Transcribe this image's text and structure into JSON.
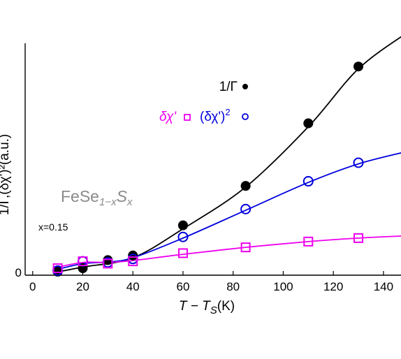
{
  "chart_data": {
    "type": "line",
    "x_tick_labels": [
      "0",
      "20",
      "40",
      "60",
      "80",
      "100",
      "120",
      "140"
    ],
    "y_tick_labels": [
      "0"
    ],
    "xlim": [
      -3,
      147
    ],
    "ylim": [
      0,
      1
    ],
    "xlabel": "T − T_S(K)",
    "xlabel_parts": {
      "main": "T − T",
      "sub": "S",
      "tail": "(K)"
    },
    "ylabel": "1/Γ,(δχ')²(a.u.)",
    "ylabel_visible": "1/Γ,(δχ')²(a.u.)",
    "annotations": {
      "material": {
        "base": "FeSe",
        "sub": "1−x",
        "s": "S",
        "s_sub": "x"
      },
      "composition": "x=0.15"
    },
    "legend": [
      {
        "label": "1/Γ",
        "marker": "filled-circle",
        "color": "#000000"
      },
      {
        "label": "δχ'",
        "marker": "open-square",
        "color": "#ee00ee"
      },
      {
        "label": "(δχ')",
        "sup": "2",
        "marker": "open-circle",
        "color": "#0000dd"
      }
    ],
    "series": [
      {
        "name": "1/Γ",
        "color": "#000000",
        "marker": "filled-circle",
        "x": [
          10,
          20,
          30,
          40,
          60,
          85,
          110,
          130
        ],
        "y": [
          0.015,
          0.03,
          0.065,
          0.085,
          0.215,
          0.385,
          0.655,
          0.9
        ],
        "fit_x": [
          8,
          20,
          40,
          60,
          85,
          110,
          130,
          150
        ],
        "fit_y": [
          0.01,
          0.035,
          0.075,
          0.2,
          0.38,
          0.64,
          0.89,
          1.05
        ]
      },
      {
        "name": "(δχ')²",
        "color": "#0000dd",
        "marker": "open-circle",
        "x": [
          10,
          20,
          30,
          40,
          60,
          85,
          110,
          130
        ],
        "y": [
          0.02,
          0.06,
          0.055,
          0.07,
          0.165,
          0.285,
          0.405,
          0.485
        ],
        "fit_x": [
          8,
          20,
          30,
          40,
          60,
          85,
          110,
          130,
          150
        ],
        "fit_y": [
          0.02,
          0.05,
          0.057,
          0.075,
          0.16,
          0.28,
          0.4,
          0.48,
          0.535
        ]
      },
      {
        "name": "δχ'",
        "color": "#ee00ee",
        "marker": "open-square",
        "x": [
          10,
          20,
          30,
          40,
          60,
          85,
          110,
          130
        ],
        "y": [
          0.03,
          0.06,
          0.05,
          0.06,
          0.095,
          0.12,
          0.145,
          0.16
        ],
        "fit_x": [
          8,
          20,
          30,
          40,
          60,
          85,
          110,
          130,
          150
        ],
        "fit_y": [
          0.03,
          0.055,
          0.055,
          0.063,
          0.09,
          0.12,
          0.145,
          0.16,
          0.17
        ]
      }
    ]
  }
}
